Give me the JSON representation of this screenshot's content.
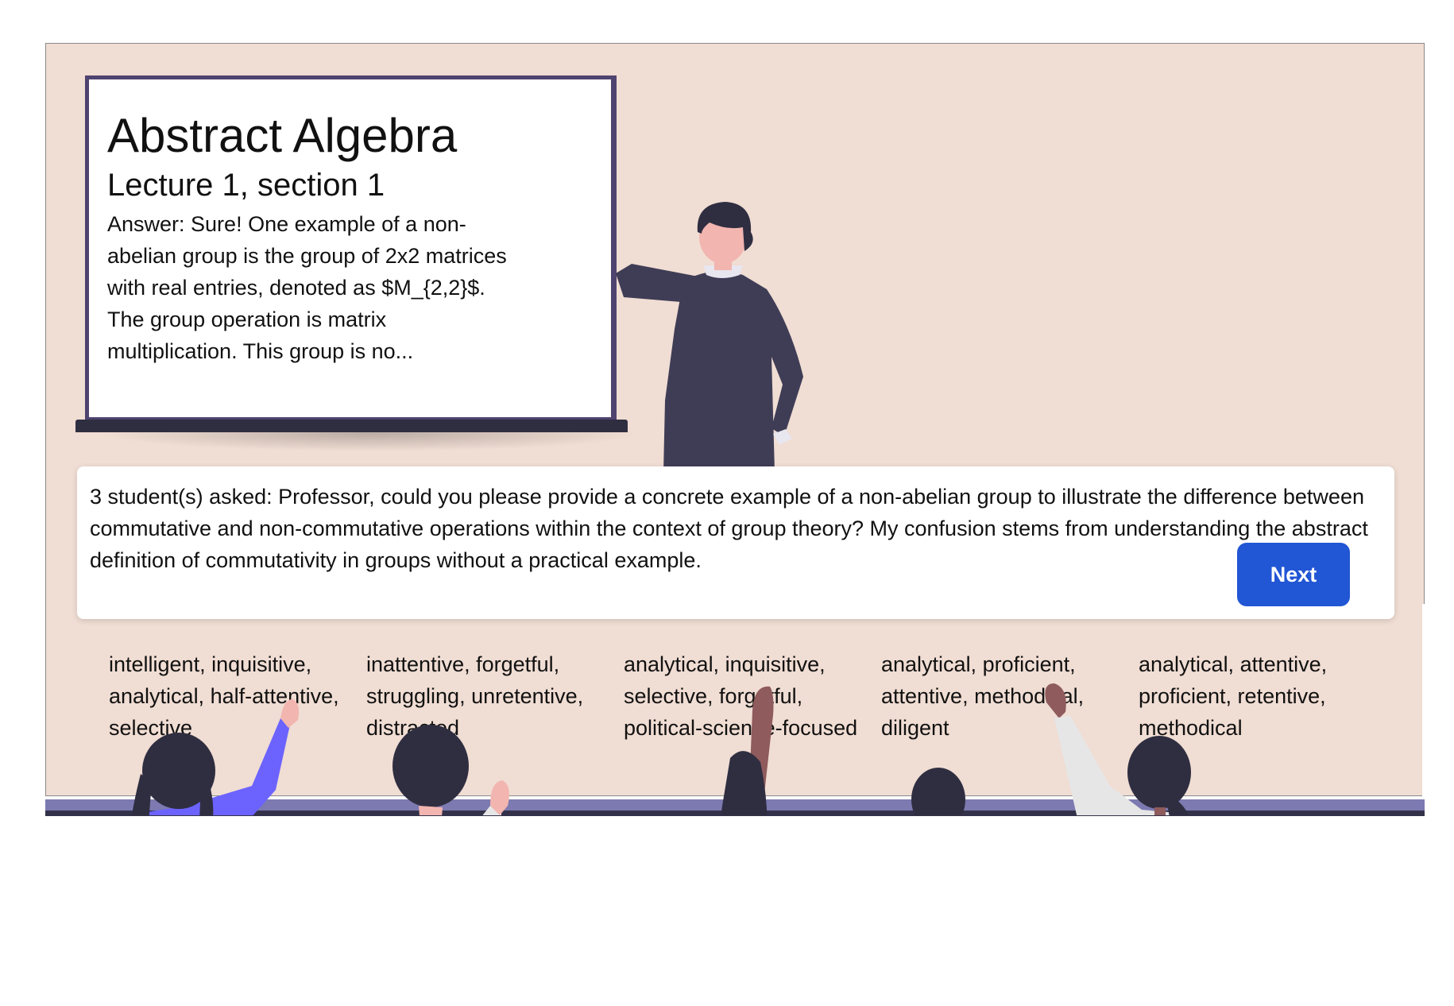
{
  "board": {
    "title": "Abstract Algebra",
    "subtitle": "Lecture 1, section 1",
    "answer": "Answer: Sure! One example of a non-abelian group is the group of 2x2 matrices with real entries, denoted as $M_{2,2}$. The group operation is matrix multiplication. This group is no..."
  },
  "question": {
    "text": "3 student(s) asked: Professor, could you please provide a concrete example of a non-abelian group to illustrate the difference between commutative and non-commutative operations within the context of group theory? My confusion stems from understanding the abstract definition of commutativity in groups without a practical example.",
    "next_label": "Next"
  },
  "students": [
    {
      "traits": "intelligent, inquisitive, analytical, half-attentive, selective"
    },
    {
      "traits": "inattentive, forgetful, struggling, unretentive, distracted"
    },
    {
      "traits": "analytical, inquisitive, selective, forgetful, political-science-focused"
    },
    {
      "traits": "analytical, proficient, attentive, methodical, diligent"
    },
    {
      "traits": "analytical, attentive, proficient, retentive, methodical"
    }
  ],
  "colors": {
    "room": "#f0ddd3",
    "board_border": "#4f4370",
    "next_button": "#2156d4",
    "dark_figure": "#3f3d56",
    "hair": "#2f2e41",
    "floor_strip": "#7c7ab0"
  }
}
